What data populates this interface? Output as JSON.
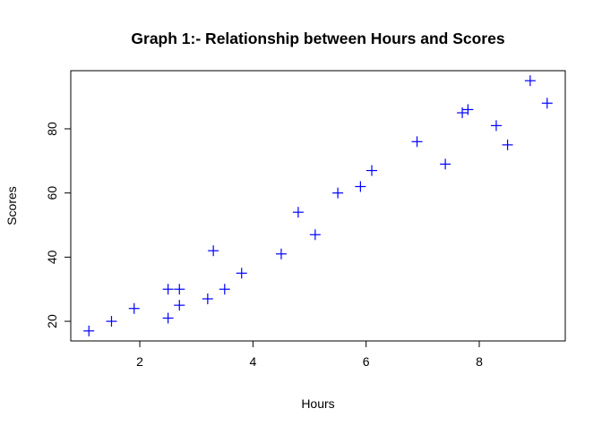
{
  "chart_data": {
    "type": "scatter",
    "title": "Graph 1:- Relationship between Hours and Scores",
    "xlabel": "Hours",
    "ylabel": "Scores",
    "xlim": [
      0.78,
      9.52
    ],
    "ylim": [
      13.88,
      98.12
    ],
    "xticks": [
      2,
      4,
      6,
      8
    ],
    "yticks": [
      20,
      40,
      60,
      80
    ],
    "marker": "plus",
    "marker_color": "#0000ff",
    "grid": false,
    "legend": "none",
    "points": [
      {
        "x": 2.5,
        "y": 21
      },
      {
        "x": 5.1,
        "y": 47
      },
      {
        "x": 3.2,
        "y": 27
      },
      {
        "x": 8.5,
        "y": 75
      },
      {
        "x": 3.5,
        "y": 30
      },
      {
        "x": 1.5,
        "y": 20
      },
      {
        "x": 9.2,
        "y": 88
      },
      {
        "x": 5.5,
        "y": 60
      },
      {
        "x": 8.3,
        "y": 81
      },
      {
        "x": 2.7,
        "y": 25
      },
      {
        "x": 7.7,
        "y": 85
      },
      {
        "x": 5.9,
        "y": 62
      },
      {
        "x": 4.5,
        "y": 41
      },
      {
        "x": 3.3,
        "y": 42
      },
      {
        "x": 1.1,
        "y": 17
      },
      {
        "x": 8.9,
        "y": 95
      },
      {
        "x": 2.5,
        "y": 30
      },
      {
        "x": 1.9,
        "y": 24
      },
      {
        "x": 6.1,
        "y": 67
      },
      {
        "x": 7.4,
        "y": 69
      },
      {
        "x": 2.7,
        "y": 30
      },
      {
        "x": 4.8,
        "y": 54
      },
      {
        "x": 3.8,
        "y": 35
      },
      {
        "x": 6.9,
        "y": 76
      },
      {
        "x": 7.8,
        "y": 86
      }
    ]
  }
}
